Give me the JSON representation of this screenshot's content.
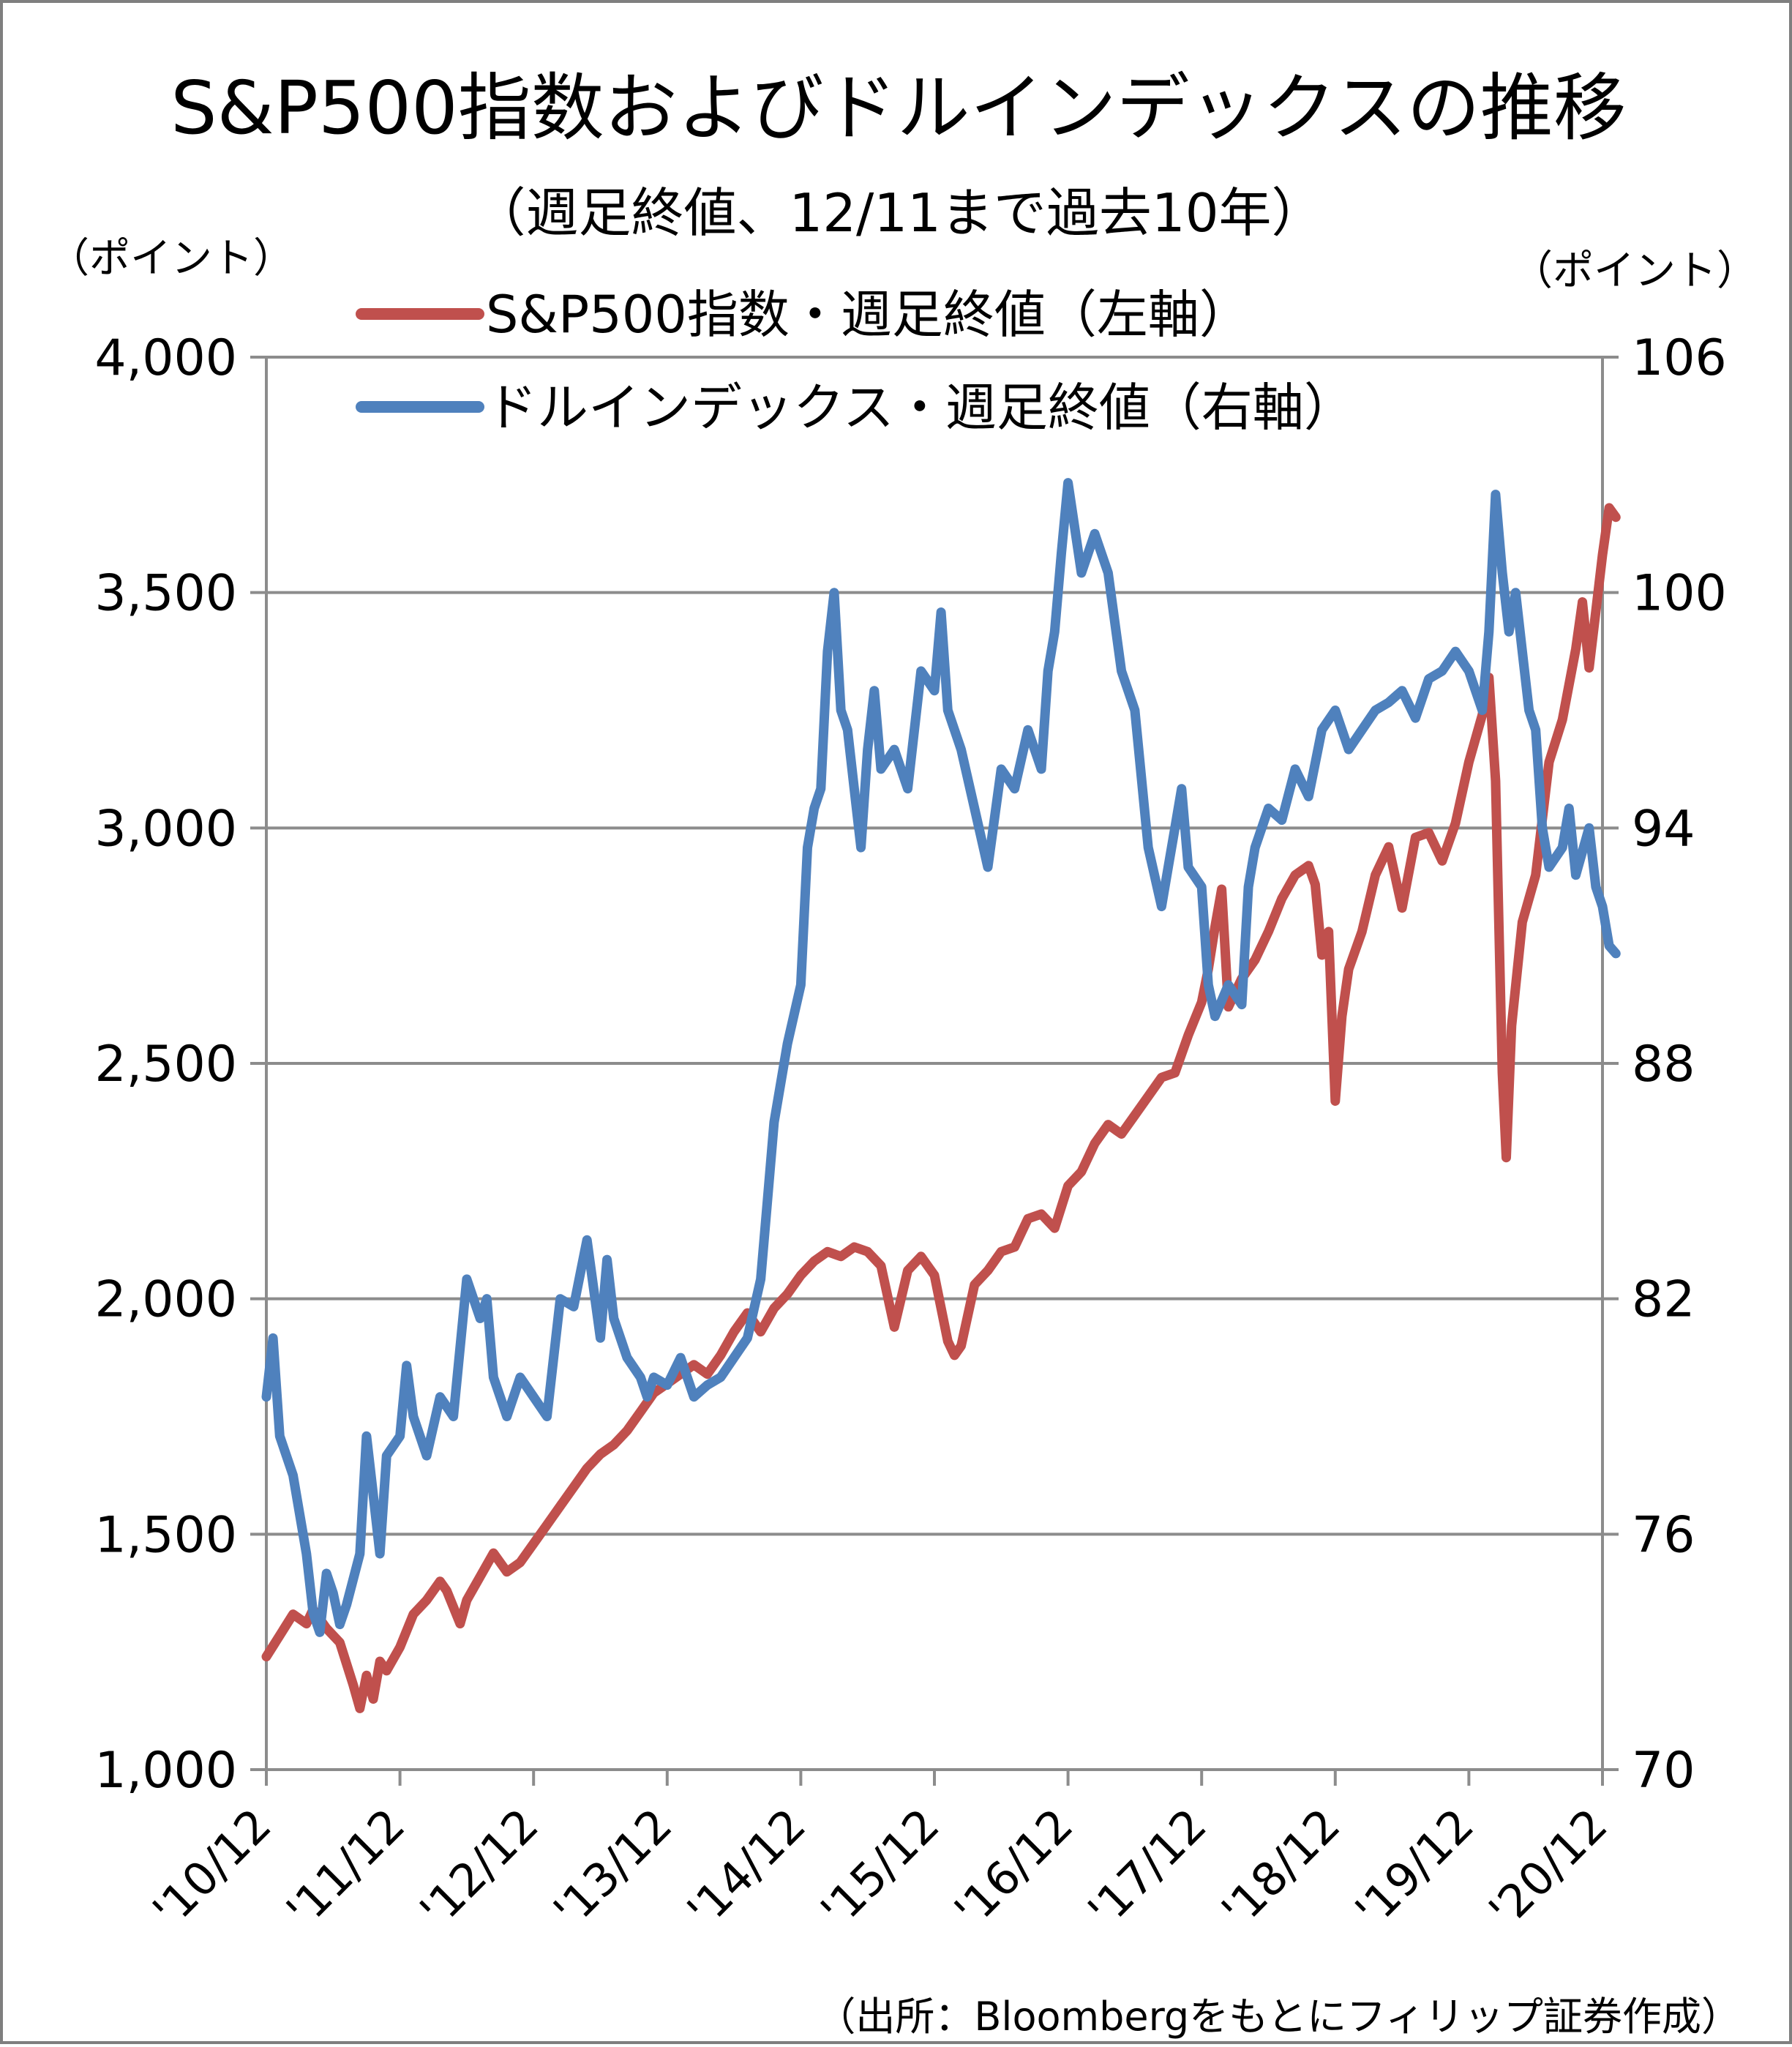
{
  "chart_data": {
    "type": "line",
    "title": "S&P500指数およびドルインデックスの推移",
    "subtitle": "（週足終値、12/11まで過去10年）",
    "y_left_unit": "（ポイント）",
    "y_right_unit": "（ポイント）",
    "source": "（出所：Bloombergをもとにフィリップ証券作成）",
    "categories": [
      "'10/12",
      "'11/12",
      "'12/12",
      "'13/12",
      "'14/12",
      "'15/12",
      "'16/12",
      "'17/12",
      "'18/12",
      "'19/12",
      "'20/12"
    ],
    "y_left": {
      "min": 1000,
      "max": 4000,
      "ticks": [
        "1,000",
        "1,500",
        "2,000",
        "2,500",
        "3,000",
        "3,500",
        "4,000"
      ]
    },
    "y_right": {
      "min": 70,
      "max": 106,
      "ticks": [
        "70",
        "76",
        "82",
        "88",
        "94",
        "100",
        "106"
      ]
    },
    "grid": true,
    "legend_position": "top-left",
    "series": [
      {
        "name": "S&P500指数・週足終値（左軸）",
        "axis": "left",
        "color": "#c0504d",
        "points": [
          [
            0,
            1240
          ],
          [
            0.1,
            1285
          ],
          [
            0.2,
            1330
          ],
          [
            0.3,
            1310
          ],
          [
            0.35,
            1340
          ],
          [
            0.45,
            1300
          ],
          [
            0.55,
            1270
          ],
          [
            0.65,
            1180
          ],
          [
            0.7,
            1130
          ],
          [
            0.75,
            1200
          ],
          [
            0.8,
            1150
          ],
          [
            0.85,
            1230
          ],
          [
            0.9,
            1210
          ],
          [
            1.0,
            1260
          ],
          [
            1.1,
            1330
          ],
          [
            1.2,
            1360
          ],
          [
            1.3,
            1400
          ],
          [
            1.35,
            1380
          ],
          [
            1.45,
            1310
          ],
          [
            1.5,
            1360
          ],
          [
            1.6,
            1410
          ],
          [
            1.7,
            1460
          ],
          [
            1.8,
            1420
          ],
          [
            1.9,
            1440
          ],
          [
            2.0,
            1480
          ],
          [
            2.1,
            1520
          ],
          [
            2.2,
            1560
          ],
          [
            2.3,
            1600
          ],
          [
            2.4,
            1640
          ],
          [
            2.5,
            1670
          ],
          [
            2.6,
            1690
          ],
          [
            2.7,
            1720
          ],
          [
            2.8,
            1760
          ],
          [
            2.9,
            1800
          ],
          [
            3.0,
            1820
          ],
          [
            3.1,
            1840
          ],
          [
            3.2,
            1860
          ],
          [
            3.3,
            1840
          ],
          [
            3.4,
            1880
          ],
          [
            3.5,
            1930
          ],
          [
            3.6,
            1970
          ],
          [
            3.7,
            1930
          ],
          [
            3.8,
            1980
          ],
          [
            3.9,
            2010
          ],
          [
            4.0,
            2050
          ],
          [
            4.1,
            2080
          ],
          [
            4.2,
            2100
          ],
          [
            4.3,
            2090
          ],
          [
            4.4,
            2110
          ],
          [
            4.5,
            2100
          ],
          [
            4.6,
            2070
          ],
          [
            4.7,
            1940
          ],
          [
            4.8,
            2060
          ],
          [
            4.9,
            2090
          ],
          [
            5.0,
            2050
          ],
          [
            5.1,
            1910
          ],
          [
            5.15,
            1880
          ],
          [
            5.2,
            1900
          ],
          [
            5.3,
            2030
          ],
          [
            5.4,
            2060
          ],
          [
            5.5,
            2100
          ],
          [
            5.6,
            2110
          ],
          [
            5.7,
            2170
          ],
          [
            5.8,
            2180
          ],
          [
            5.9,
            2150
          ],
          [
            6.0,
            2240
          ],
          [
            6.1,
            2270
          ],
          [
            6.2,
            2330
          ],
          [
            6.3,
            2370
          ],
          [
            6.4,
            2350
          ],
          [
            6.5,
            2390
          ],
          [
            6.6,
            2430
          ],
          [
            6.7,
            2470
          ],
          [
            6.8,
            2480
          ],
          [
            6.9,
            2560
          ],
          [
            7.0,
            2630
          ],
          [
            7.05,
            2700
          ],
          [
            7.1,
            2790
          ],
          [
            7.15,
            2870
          ],
          [
            7.2,
            2620
          ],
          [
            7.3,
            2680
          ],
          [
            7.4,
            2720
          ],
          [
            7.5,
            2780
          ],
          [
            7.6,
            2850
          ],
          [
            7.7,
            2900
          ],
          [
            7.8,
            2920
          ],
          [
            7.85,
            2880
          ],
          [
            7.9,
            2730
          ],
          [
            7.95,
            2780
          ],
          [
            8.0,
            2420
          ],
          [
            8.05,
            2600
          ],
          [
            8.1,
            2700
          ],
          [
            8.2,
            2780
          ],
          [
            8.3,
            2900
          ],
          [
            8.4,
            2960
          ],
          [
            8.5,
            2830
          ],
          [
            8.6,
            2980
          ],
          [
            8.7,
            2990
          ],
          [
            8.8,
            2930
          ],
          [
            8.9,
            3010
          ],
          [
            9.0,
            3140
          ],
          [
            9.1,
            3240
          ],
          [
            9.15,
            3320
          ],
          [
            9.2,
            3100
          ],
          [
            9.25,
            2480
          ],
          [
            9.28,
            2300
          ],
          [
            9.32,
            2580
          ],
          [
            9.4,
            2800
          ],
          [
            9.5,
            2900
          ],
          [
            9.6,
            3140
          ],
          [
            9.7,
            3230
          ],
          [
            9.8,
            3380
          ],
          [
            9.85,
            3480
          ],
          [
            9.9,
            3340
          ],
          [
            9.95,
            3460
          ],
          [
            10.0,
            3580
          ],
          [
            10.05,
            3680
          ],
          [
            10.1,
            3660
          ]
        ]
      },
      {
        "name": "ドルインデックス・週足終値（右軸）",
        "axis": "right",
        "color": "#4f81bd",
        "points": [
          [
            0,
            79.5
          ],
          [
            0.05,
            81.0
          ],
          [
            0.1,
            78.5
          ],
          [
            0.2,
            77.5
          ],
          [
            0.3,
            75.5
          ],
          [
            0.35,
            74.0
          ],
          [
            0.4,
            73.5
          ],
          [
            0.45,
            75.0
          ],
          [
            0.5,
            74.5
          ],
          [
            0.55,
            73.7
          ],
          [
            0.6,
            74.2
          ],
          [
            0.7,
            75.5
          ],
          [
            0.75,
            78.5
          ],
          [
            0.8,
            77.0
          ],
          [
            0.85,
            75.5
          ],
          [
            0.9,
            78.0
          ],
          [
            1.0,
            78.5
          ],
          [
            1.05,
            80.3
          ],
          [
            1.1,
            79.0
          ],
          [
            1.2,
            78.0
          ],
          [
            1.3,
            79.5
          ],
          [
            1.4,
            79.0
          ],
          [
            1.5,
            82.5
          ],
          [
            1.6,
            81.5
          ],
          [
            1.65,
            82.0
          ],
          [
            1.7,
            80.0
          ],
          [
            1.8,
            79.0
          ],
          [
            1.9,
            80.0
          ],
          [
            2.0,
            79.5
          ],
          [
            2.1,
            79.0
          ],
          [
            2.2,
            82.0
          ],
          [
            2.3,
            81.8
          ],
          [
            2.4,
            83.5
          ],
          [
            2.5,
            81.0
          ],
          [
            2.55,
            83.0
          ],
          [
            2.6,
            81.5
          ],
          [
            2.7,
            80.5
          ],
          [
            2.8,
            80.0
          ],
          [
            2.85,
            79.5
          ],
          [
            2.9,
            80.0
          ],
          [
            3.0,
            79.8
          ],
          [
            3.1,
            80.5
          ],
          [
            3.2,
            79.5
          ],
          [
            3.3,
            79.8
          ],
          [
            3.4,
            80.0
          ],
          [
            3.5,
            80.5
          ],
          [
            3.6,
            81.0
          ],
          [
            3.7,
            82.5
          ],
          [
            3.75,
            84.5
          ],
          [
            3.8,
            86.5
          ],
          [
            3.85,
            87.5
          ],
          [
            3.9,
            88.5
          ],
          [
            4.0,
            90.0
          ],
          [
            4.05,
            93.5
          ],
          [
            4.1,
            94.5
          ],
          [
            4.15,
            95.0
          ],
          [
            4.2,
            98.5
          ],
          [
            4.25,
            100.0
          ],
          [
            4.3,
            97.0
          ],
          [
            4.35,
            96.5
          ],
          [
            4.4,
            95.0
          ],
          [
            4.45,
            93.5
          ],
          [
            4.5,
            96.0
          ],
          [
            4.55,
            97.5
          ],
          [
            4.6,
            95.5
          ],
          [
            4.7,
            96.0
          ],
          [
            4.8,
            95.0
          ],
          [
            4.9,
            98.0
          ],
          [
            5.0,
            97.5
          ],
          [
            5.05,
            99.5
          ],
          [
            5.1,
            97.0
          ],
          [
            5.2,
            96.0
          ],
          [
            5.3,
            94.5
          ],
          [
            5.4,
            93.0
          ],
          [
            5.5,
            95.5
          ],
          [
            5.6,
            95.0
          ],
          [
            5.7,
            96.5
          ],
          [
            5.8,
            95.5
          ],
          [
            5.85,
            98.0
          ],
          [
            5.9,
            99.0
          ],
          [
            5.95,
            101.0
          ],
          [
            6.0,
            102.8
          ],
          [
            6.1,
            100.5
          ],
          [
            6.2,
            101.5
          ],
          [
            6.3,
            100.5
          ],
          [
            6.4,
            98.0
          ],
          [
            6.5,
            97.0
          ],
          [
            6.6,
            93.5
          ],
          [
            6.7,
            92.0
          ],
          [
            6.75,
            93.0
          ],
          [
            6.8,
            94.0
          ],
          [
            6.85,
            95.0
          ],
          [
            6.9,
            93.0
          ],
          [
            7.0,
            92.5
          ],
          [
            7.05,
            90.0
          ],
          [
            7.1,
            89.2
          ],
          [
            7.2,
            90.0
          ],
          [
            7.3,
            89.5
          ],
          [
            7.35,
            92.5
          ],
          [
            7.4,
            93.5
          ],
          [
            7.5,
            94.5
          ],
          [
            7.6,
            94.2
          ],
          [
            7.7,
            95.5
          ],
          [
            7.8,
            94.8
          ],
          [
            7.9,
            96.5
          ],
          [
            8.0,
            97.0
          ],
          [
            8.1,
            96.0
          ],
          [
            8.2,
            96.5
          ],
          [
            8.3,
            97.0
          ],
          [
            8.4,
            97.2
          ],
          [
            8.5,
            97.5
          ],
          [
            8.6,
            96.8
          ],
          [
            8.7,
            97.8
          ],
          [
            8.8,
            98.0
          ],
          [
            8.9,
            98.5
          ],
          [
            9.0,
            98.0
          ],
          [
            9.05,
            97.5
          ],
          [
            9.1,
            97.0
          ],
          [
            9.15,
            99.0
          ],
          [
            9.2,
            102.5
          ],
          [
            9.25,
            100.5
          ],
          [
            9.3,
            99.0
          ],
          [
            9.35,
            100.0
          ],
          [
            9.4,
            98.5
          ],
          [
            9.45,
            97.0
          ],
          [
            9.5,
            96.5
          ],
          [
            9.55,
            94.0
          ],
          [
            9.6,
            93.0
          ],
          [
            9.7,
            93.5
          ],
          [
            9.75,
            94.5
          ],
          [
            9.8,
            92.8
          ],
          [
            9.9,
            94.0
          ],
          [
            9.95,
            92.5
          ],
          [
            10.0,
            92.0
          ],
          [
            10.05,
            91.0
          ],
          [
            10.1,
            90.8
          ]
        ]
      }
    ]
  }
}
